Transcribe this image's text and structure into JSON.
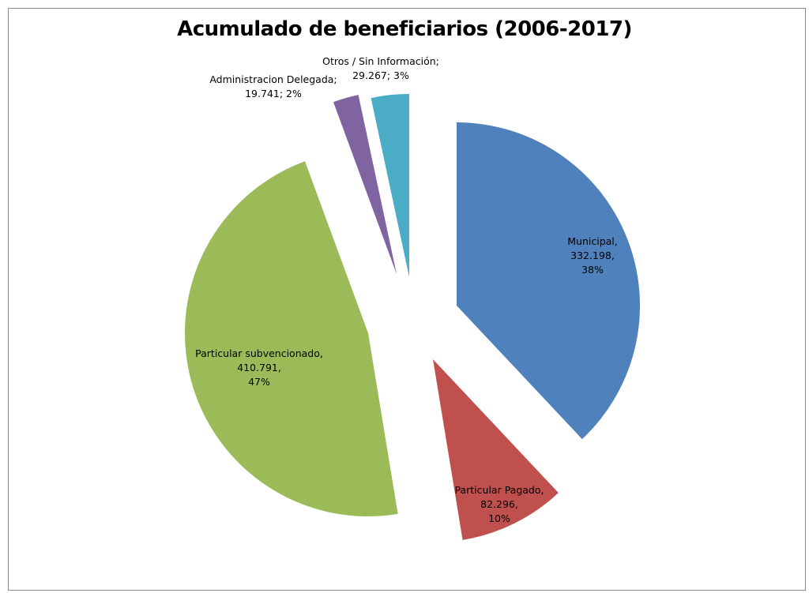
{
  "chart_data": {
    "type": "pie",
    "title": "Acumulado de beneficiarios (2006-2017)",
    "legend": "none",
    "exploded": true,
    "slices": [
      {
        "name": "Municipal",
        "value": 332198,
        "value_label": "332.198",
        "percent_label": "38%",
        "color": "#4f81bd",
        "label_separator": ","
      },
      {
        "name": "Particular Pagado",
        "value": 82296,
        "value_label": "82.296",
        "percent_label": "10%",
        "color": "#c0504d",
        "label_separator": ","
      },
      {
        "name": "Particular subvencionado",
        "value": 410791,
        "value_label": "410.791",
        "percent_label": "47%",
        "color": "#9bbb59",
        "label_separator": ","
      },
      {
        "name": "Administracion Delegada",
        "value": 19741,
        "value_label": "19.741",
        "percent_label": "2%",
        "color": "#8064a2",
        "label_separator": ";"
      },
      {
        "name": "Otros / Sin Información",
        "value": 29267,
        "value_label": "29.267",
        "percent_label": "3%",
        "color": "#4bacc6",
        "label_separator": ";"
      }
    ]
  }
}
